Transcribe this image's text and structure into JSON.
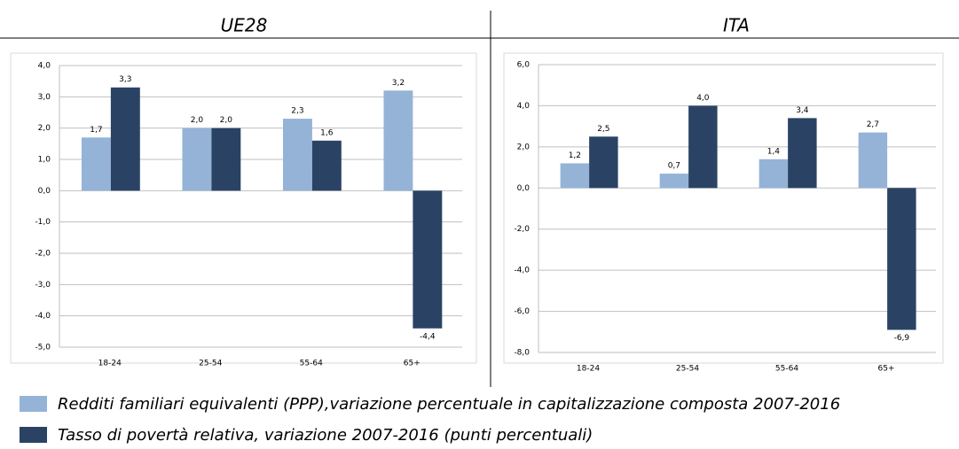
{
  "chart_data": [
    {
      "type": "bar",
      "title": "UE28",
      "categories": [
        "18-24",
        "25-54",
        "55-64",
        "65+"
      ],
      "series": [
        {
          "name": "Redditi familiari equivalenti (PPP),variazione percentuale in capitalizzazione composta 2007-2016",
          "color": "#95b3d7",
          "values": [
            1.7,
            2.0,
            2.3,
            3.2
          ],
          "value_labels": [
            "1,7",
            "2,0",
            "2,3",
            "3,2"
          ]
        },
        {
          "name": "Tasso di povertà relativa, variazione 2007-2016 (punti percentuali)",
          "color": "#2a4365",
          "values": [
            3.3,
            2.0,
            1.6,
            -4.4
          ],
          "value_labels": [
            "3,3",
            "2,0",
            "1,6",
            "-4,4"
          ]
        }
      ],
      "ylim": [
        -5,
        4
      ],
      "yticks": [
        {
          "value": -5,
          "label": "-5,0"
        },
        {
          "value": -4,
          "label": "-4,0"
        },
        {
          "value": -3,
          "label": "-3,0"
        },
        {
          "value": -2,
          "label": "-2,0"
        },
        {
          "value": -1,
          "label": "-1,0"
        },
        {
          "value": 0,
          "label": "0,0"
        },
        {
          "value": 1,
          "label": "1,0"
        },
        {
          "value": 2,
          "label": "2,0"
        },
        {
          "value": 3,
          "label": "3,0"
        },
        {
          "value": 4,
          "label": "4,0"
        }
      ],
      "grid": true
    },
    {
      "type": "bar",
      "title": "ITA",
      "categories": [
        "18-24",
        "25-54",
        "55-64",
        "65+"
      ],
      "series": [
        {
          "color": "#95b3d7",
          "values": [
            1.2,
            0.7,
            1.4,
            2.7
          ],
          "value_labels": [
            "1,2",
            "0,7",
            "1,4",
            "2,7"
          ]
        },
        {
          "color": "#2a4365",
          "values": [
            2.5,
            4.0,
            3.4,
            -6.9
          ],
          "value_labels": [
            "2,5",
            "4,0",
            "3,4",
            "-6,9"
          ]
        }
      ],
      "ylim": [
        -8,
        6
      ],
      "yticks": [
        {
          "value": -8,
          "label": "-8,0"
        },
        {
          "value": -6,
          "label": "-6,0"
        },
        {
          "value": -4,
          "label": "-4,0"
        },
        {
          "value": -2,
          "label": "-2,0"
        },
        {
          "value": 0,
          "label": "0,0"
        },
        {
          "value": 2,
          "label": "2,0"
        },
        {
          "value": 4,
          "label": "4,0"
        },
        {
          "value": 6,
          "label": "6,0"
        }
      ],
      "grid": true
    }
  ]
}
